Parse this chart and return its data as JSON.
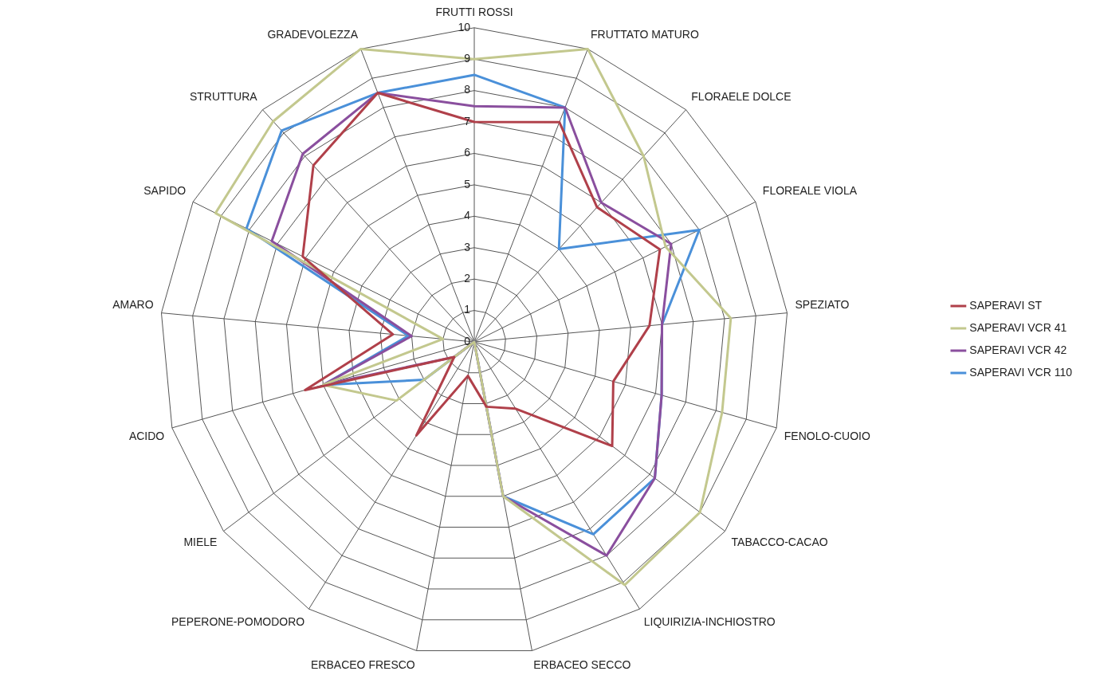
{
  "chart_data": {
    "type": "radar",
    "categories": [
      "FRUTTI ROSSI",
      "FRUTTATO MATURO",
      "FLORAELE DOLCE",
      "FLOREALE VIOLA",
      "SPEZIATO",
      "FENOLO-CUOIO",
      "TABACCO-CACAO",
      "LIQUIRIZIA-INCHIOSTRO",
      "ERBACEO SECCO",
      "ERBACEO FRESCO",
      "PEPERONE-POMODORO",
      "MIELE",
      "ACIDO",
      "AMARO",
      "SAPIDO",
      "STRUTTURA",
      "GRADEVOLEZZA"
    ],
    "series": [
      {
        "name": "SAPERAVI ST",
        "color": "#b0404a",
        "values": [
          7,
          7.5,
          5.8,
          6.6,
          5.6,
          4.6,
          5.5,
          2.5,
          2.1,
          1.1,
          3.5,
          0.8,
          5.6,
          2.6,
          6.1,
          7.6,
          8.5
        ]
      },
      {
        "name": "SAPERAVI VCR 41",
        "color": "#c3c88e",
        "values": [
          9,
          10,
          8,
          6.8,
          8.2,
          8.2,
          9,
          9.1,
          5,
          0,
          0,
          3.1,
          5,
          1,
          9.2,
          9.5,
          10
        ]
      },
      {
        "name": "SAPERAVI VCR 42",
        "color": "#8a4f9e",
        "values": [
          7.5,
          8,
          6,
          7,
          6,
          6.2,
          7.2,
          8,
          5,
          0,
          0,
          0.8,
          5,
          2,
          7.2,
          8.1,
          8.5
        ]
      },
      {
        "name": "SAPERAVI VCR 110",
        "color": "#4a90d9",
        "values": [
          8.5,
          8,
          4,
          8,
          6,
          6.2,
          7.2,
          7.2,
          5,
          0,
          0,
          2,
          5,
          2.1,
          8.1,
          9.1,
          8.5
        ]
      }
    ],
    "ylim": [
      0,
      10
    ],
    "yticks": [
      0,
      1,
      2,
      3,
      4,
      5,
      6,
      7,
      8,
      9,
      10
    ],
    "grid": true,
    "legend": "right",
    "marker": "none"
  }
}
